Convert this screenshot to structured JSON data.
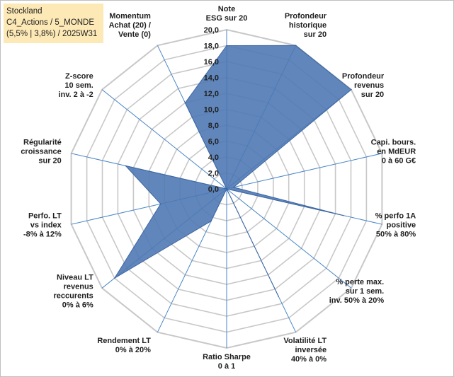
{
  "header": {
    "name": "Stockland",
    "line2": "C4_Actions / 5_MONDE",
    "line3": "(5,5% | 3,8%) / 2025W31"
  },
  "chart_data": {
    "type": "radar",
    "rmin": 0,
    "rmax": 20,
    "ticks": [
      "0,0",
      "2,0",
      "4,0",
      "6,0",
      "8,0",
      "10,0",
      "12,0",
      "14,0",
      "16,0",
      "18,0",
      "20,0"
    ],
    "axes": [
      {
        "label": [
          "Note",
          "ESG sur 20"
        ],
        "value": 18
      },
      {
        "label": [
          "Profondeur",
          "historique",
          "sur 20"
        ],
        "value": 20
      },
      {
        "label": [
          "Profondeur",
          "revenus",
          "sur 20"
        ],
        "value": 20
      },
      {
        "label": [
          "Capi. bours.",
          "en MdEUR",
          "0 à 60 G€"
        ],
        "value": 0.9
      },
      {
        "label": [
          "% perfo 1A",
          "positive",
          "50% à 80%"
        ],
        "value": 15
      },
      {
        "label": [
          "% perte max.",
          "sur 1 sem.",
          "inv. 50% à 20%"
        ],
        "value": 0
      },
      {
        "label": [
          "Volatilité LT",
          "inversée",
          "40% à 0%"
        ],
        "value": 15
      },
      {
        "label": [
          "Ratio Sharpe",
          "0 à 1"
        ],
        "value": 0
      },
      {
        "label": [
          "Rendement LT",
          "0% à 20%"
        ],
        "value": 4.5
      },
      {
        "label": [
          "Niveau LT",
          "revenus",
          "reccurents",
          "0% à 6%"
        ],
        "value": 18
      },
      {
        "label": [
          "Perfo. LT",
          "vs index",
          "-8% à 12%"
        ],
        "value": 8.5
      },
      {
        "label": [
          "Régularité",
          "croissance",
          "sur 20"
        ],
        "value": 13
      },
      {
        "label": [
          "Z-score",
          "10 sem.",
          "inv. 2 à -2"
        ],
        "value": 0
      },
      {
        "label": [
          "Momentum",
          "Achat (20) /",
          "Vente (0)"
        ],
        "value": 12
      }
    ],
    "colors": {
      "fill": "#4f79b4",
      "stroke": "#3e67a3",
      "spoke": "#4a86c8",
      "grid": "#c8c8c8"
    }
  }
}
